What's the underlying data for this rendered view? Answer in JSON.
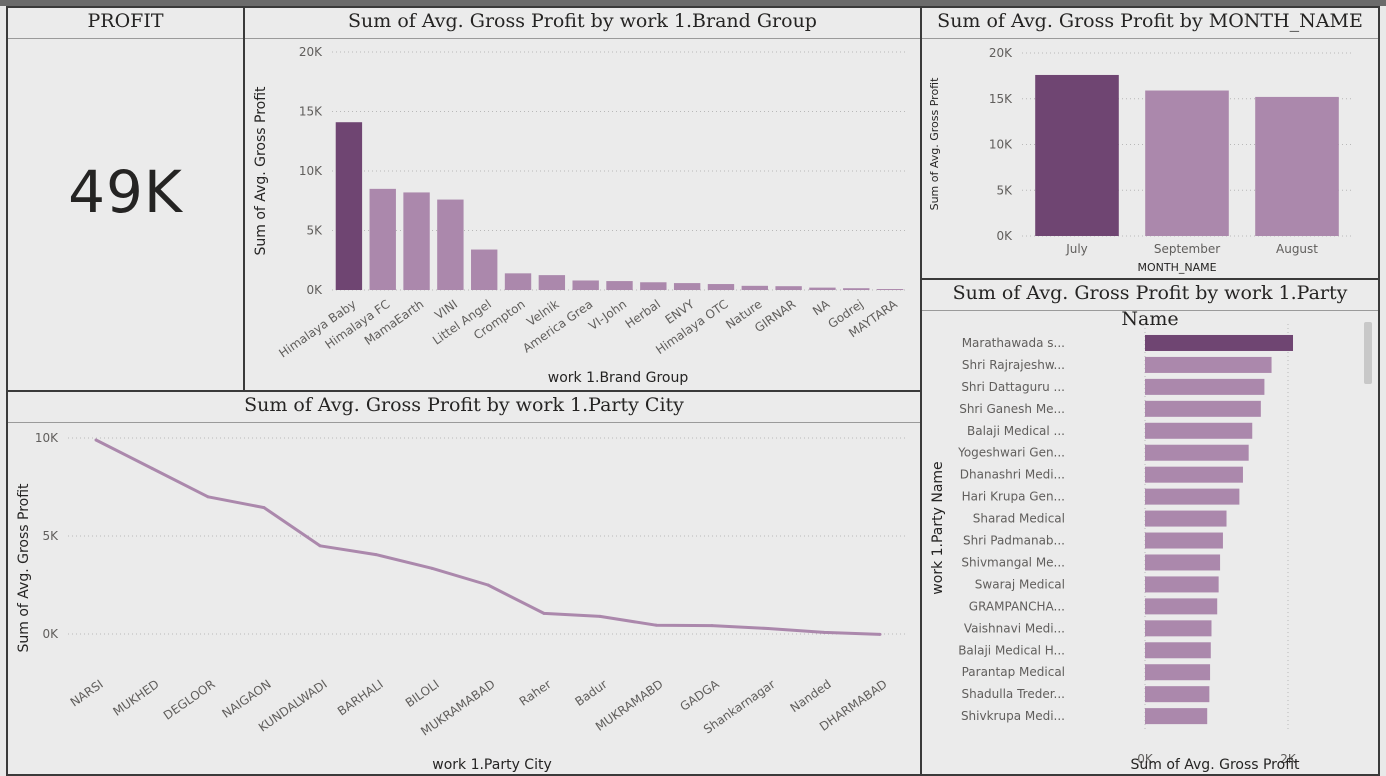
{
  "colors": {
    "highlight": "#6f4572",
    "bar": "#ab88ac",
    "line": "#ab88ac",
    "grid": "#b8b8b8"
  },
  "kpi": {
    "title": "PROFIT",
    "value": "49K"
  },
  "chart_data": [
    {
      "id": "brand",
      "type": "bar",
      "title": "Sum of Avg. Gross Profit by work 1.Brand Group",
      "xlabel": "work 1.Brand Group",
      "ylabel": "Sum of Avg. Gross Profit",
      "ylim": [
        0,
        20000
      ],
      "yticks": [
        "0K",
        "5K",
        "10K",
        "15K",
        "20K"
      ],
      "grid": true,
      "categories": [
        "Himalaya Baby",
        "Himalaya FC",
        "MamaEarth",
        "VINI",
        "Littel Angel",
        "Crompton",
        "Velnik",
        "America Grea",
        "VI-John",
        "Herbal",
        "ENVY",
        "Himalaya OTC",
        "Nature",
        "GIRNAR",
        "NA",
        "Godrej",
        "MAYTARA"
      ],
      "values": [
        14100,
        8500,
        8200,
        7600,
        3400,
        1400,
        1250,
        800,
        750,
        650,
        580,
        500,
        350,
        320,
        200,
        150,
        80
      ]
    },
    {
      "id": "month",
      "type": "bar",
      "title": "Sum of Avg. Gross Profit by MONTH_NAME",
      "xlabel": "MONTH_NAME",
      "ylabel": "Sum of Avg. Gross Profit",
      "ylim": [
        0,
        20000
      ],
      "yticks": [
        "0K",
        "5K",
        "10K",
        "15K",
        "20K"
      ],
      "grid": true,
      "categories": [
        "July",
        "September",
        "August"
      ],
      "values": [
        17600,
        15900,
        15200
      ]
    },
    {
      "id": "city",
      "type": "line",
      "title": "Sum of Avg. Gross Profit by work 1.Party City",
      "xlabel": "work 1.Party City",
      "ylabel": "Sum of Avg. Gross Profit",
      "ylim": [
        0,
        10000
      ],
      "yticks": [
        "0K",
        "5K",
        "10K"
      ],
      "grid": true,
      "categories": [
        "NARSI",
        "MUKHED",
        "DEGLOOR",
        "NAIGAON",
        "KUNDALWADI",
        "BARHALI",
        "BILOLI",
        "MUKRAMABAD",
        "Raher",
        "Badur",
        "MUKRAMABD",
        "GADGA",
        "Shankarnagar",
        "Nanded",
        "DHARMABAD"
      ],
      "values": [
        9900,
        8450,
        7000,
        6450,
        4500,
        4050,
        3350,
        2500,
        1050,
        900,
        450,
        430,
        280,
        80,
        -20
      ]
    },
    {
      "id": "party",
      "type": "bar",
      "orientation": "horizontal",
      "title": "Sum of Avg. Gross Profit by work 1.Party Name",
      "xlabel": "Sum of Avg. Gross Profit",
      "ylabel": "work 1.Party Name",
      "xlim": [
        0,
        2000
      ],
      "xticks": [
        "0K",
        "2K"
      ],
      "grid": true,
      "categories": [
        "Marathawada s...",
        "Shri Rajrajeshw...",
        "Shri Dattaguru ...",
        "Shri Ganesh Me...",
        "Balaji Medical ...",
        "Yogeshwari Gen...",
        "Dhanashri Medi...",
        "Hari Krupa Gen...",
        "Sharad Medical",
        "Shri Padmanab...",
        "Shivmangal Me...",
        "Swaraj Medical",
        "GRAMPANCHA...",
        "Vaishnavi Medi...",
        "Balaji Medical H...",
        "Parantap Medical",
        "Shadulla Treder...",
        "Shivkrupa Medi..."
      ],
      "values": [
        2070,
        1770,
        1670,
        1620,
        1500,
        1450,
        1370,
        1320,
        1140,
        1090,
        1050,
        1030,
        1010,
        930,
        920,
        910,
        900,
        870
      ]
    }
  ]
}
